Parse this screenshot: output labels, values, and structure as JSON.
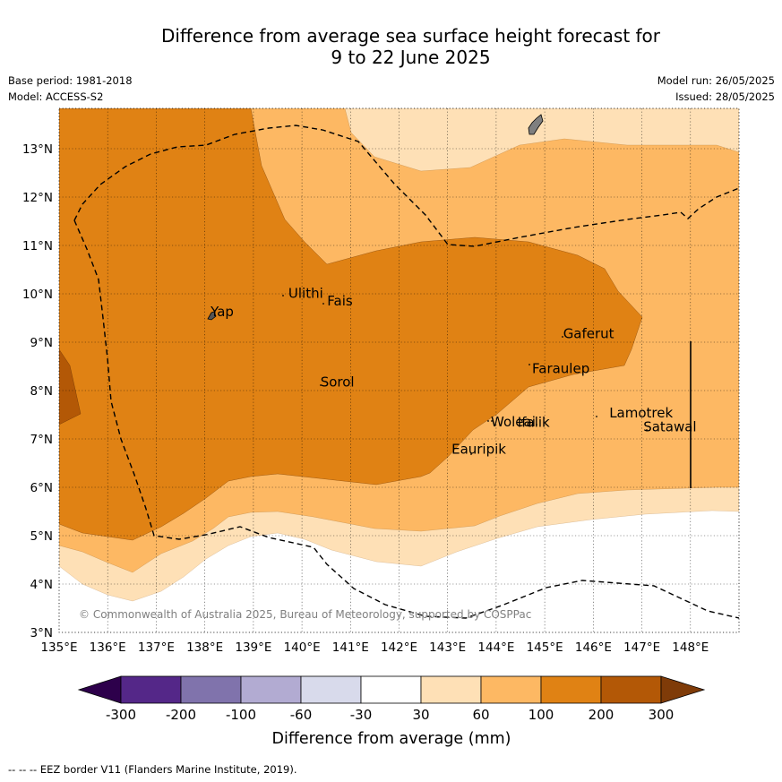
{
  "title_line1": "Difference from average sea surface height forecast for",
  "title_line2": "9 to 22 June 2025",
  "base_period": "Base period: 1981-2018",
  "model": "Model: ACCESS-S2",
  "model_run": "Model run: 26/05/2025",
  "issued": "Issued: 28/05/2025",
  "copyright": "© Commonwealth of Australia 2025, Bureau of Meteorology, supported by COSPPac",
  "footer_legend": "--  --  -- EEZ border V11 (Flanders Marine Institute, 2019).",
  "places": [
    {
      "name": "Ulithi",
      "lon": 139.72,
      "lat": 9.92
    },
    {
      "name": "Fais",
      "lon": 140.52,
      "lat": 9.76
    },
    {
      "name": "Yap",
      "lon": 138.12,
      "lat": 9.54
    },
    {
      "name": "Gaferut",
      "lon": 145.38,
      "lat": 9.08
    },
    {
      "name": "Faraulep",
      "lon": 144.74,
      "lat": 8.36
    },
    {
      "name": "Sorol",
      "lon": 140.38,
      "lat": 8.08
    },
    {
      "name": "Lamotrek",
      "lon": 146.33,
      "lat": 7.44
    },
    {
      "name": "Woleai",
      "lon": 143.89,
      "lat": 7.26
    },
    {
      "name": "Ifalik",
      "lon": 144.44,
      "lat": 7.25
    },
    {
      "name": "Satawal",
      "lon": 147.03,
      "lat": 7.16
    },
    {
      "name": "Eauripik",
      "lon": 143.08,
      "lat": 6.69
    }
  ],
  "lon_ticks": [
    "135°E",
    "136°E",
    "137°E",
    "138°E",
    "139°E",
    "140°E",
    "141°E",
    "142°E",
    "143°E",
    "144°E",
    "145°E",
    "146°E",
    "147°E",
    "148°E"
  ],
  "lat_ticks": [
    "3°N",
    "4°N",
    "5°N",
    "6°N",
    "7°N",
    "8°N",
    "9°N",
    "10°N",
    "11°N",
    "12°N",
    "13°N"
  ],
  "colorbar": {
    "title": "Difference from average (mm)",
    "labels": [
      "-300",
      "-200",
      "-100",
      "-60",
      "-30",
      "30",
      "60",
      "100",
      "200",
      "300"
    ],
    "colors": [
      "#2d004b",
      "#542788",
      "#8073ac",
      "#b2abd2",
      "#d8daeb",
      "#ffffff",
      "#fee0b6",
      "#fdb863",
      "#e08214",
      "#b35806",
      "#7f3b08"
    ]
  }
}
